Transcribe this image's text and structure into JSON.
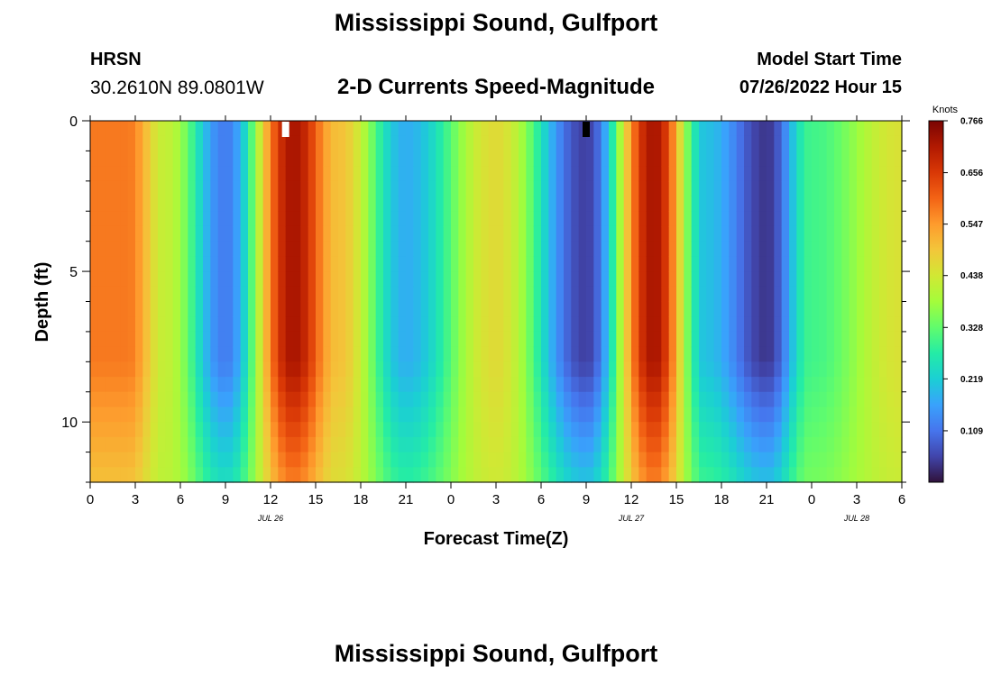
{
  "header": {
    "title": "Mississippi Sound, Gulfport",
    "station_id": "HRSN",
    "coordinates": "30.2610N  89.0801W",
    "subtitle": "2-D Currents Speed-Magnitude",
    "model_start_label": "Model Start Time",
    "model_start_value": "07/26/2022 Hour 15"
  },
  "footer": {
    "title": "Mississippi Sound, Gulfport"
  },
  "colorbar": {
    "unit": "Knots",
    "min": 0,
    "max": 0.766,
    "tick_labels": [
      "0.766",
      "0.656",
      "0.547",
      "0.438",
      "0.328",
      "0.219",
      "0.109"
    ],
    "tick_values": [
      0.766,
      0.656,
      0.547,
      0.438,
      0.328,
      0.219,
      0.109
    ],
    "colors": [
      "#30123b",
      "#4145ab",
      "#4675ed",
      "#39a2fc",
      "#1bcfd4",
      "#24eca6",
      "#61fc6c",
      "#a4fc3b",
      "#d1e834",
      "#f3c63a",
      "#fe9b2d",
      "#f36315",
      "#d93806",
      "#b11901",
      "#7a0402"
    ]
  },
  "chart_data": {
    "type": "heatmap",
    "title": "2-D Currents Speed-Magnitude",
    "xlabel": "Forecast Time(Z)",
    "ylabel": "Depth (ft)",
    "x_hours_start": 0,
    "x_hours_end": 54,
    "x_tick_labels": [
      "0",
      "3",
      "6",
      "9",
      "12",
      "15",
      "18",
      "21",
      "0",
      "3",
      "6",
      "9",
      "12",
      "15",
      "18",
      "21",
      "0",
      "3",
      "6"
    ],
    "x_day_labels": [
      {
        "text": "JUL 26",
        "hour": 12
      },
      {
        "text": "JUL 27",
        "hour": 36
      },
      {
        "text": "JUL 28",
        "hour": 51
      }
    ],
    "y_tick_labels": [
      "0",
      "5",
      "10"
    ],
    "y_tick_values": [
      0,
      5,
      10
    ],
    "ylim": [
      0,
      12
    ],
    "speed_peaks": [
      {
        "hour": 2.5,
        "speed": 0.58
      },
      {
        "hour": 5,
        "speed": 0.42
      },
      {
        "hour": 9,
        "speed": 0.12
      },
      {
        "hour": 13.5,
        "speed": 0.72
      },
      {
        "hour": 16.5,
        "speed": 0.5
      },
      {
        "hour": 21,
        "speed": 0.18
      },
      {
        "hour": 27,
        "speed": 0.46
      },
      {
        "hour": 33,
        "speed": 0.05
      },
      {
        "hour": 37.5,
        "speed": 0.72
      },
      {
        "hour": 41,
        "speed": 0.2
      },
      {
        "hour": 45,
        "speed": 0.04
      },
      {
        "hour": 48,
        "speed": 0.3
      },
      {
        "hour": 54,
        "speed": 0.45
      }
    ],
    "markers": [
      {
        "hour": 13,
        "color": "#ffffff"
      },
      {
        "hour": 33,
        "color": "#000000"
      }
    ]
  }
}
